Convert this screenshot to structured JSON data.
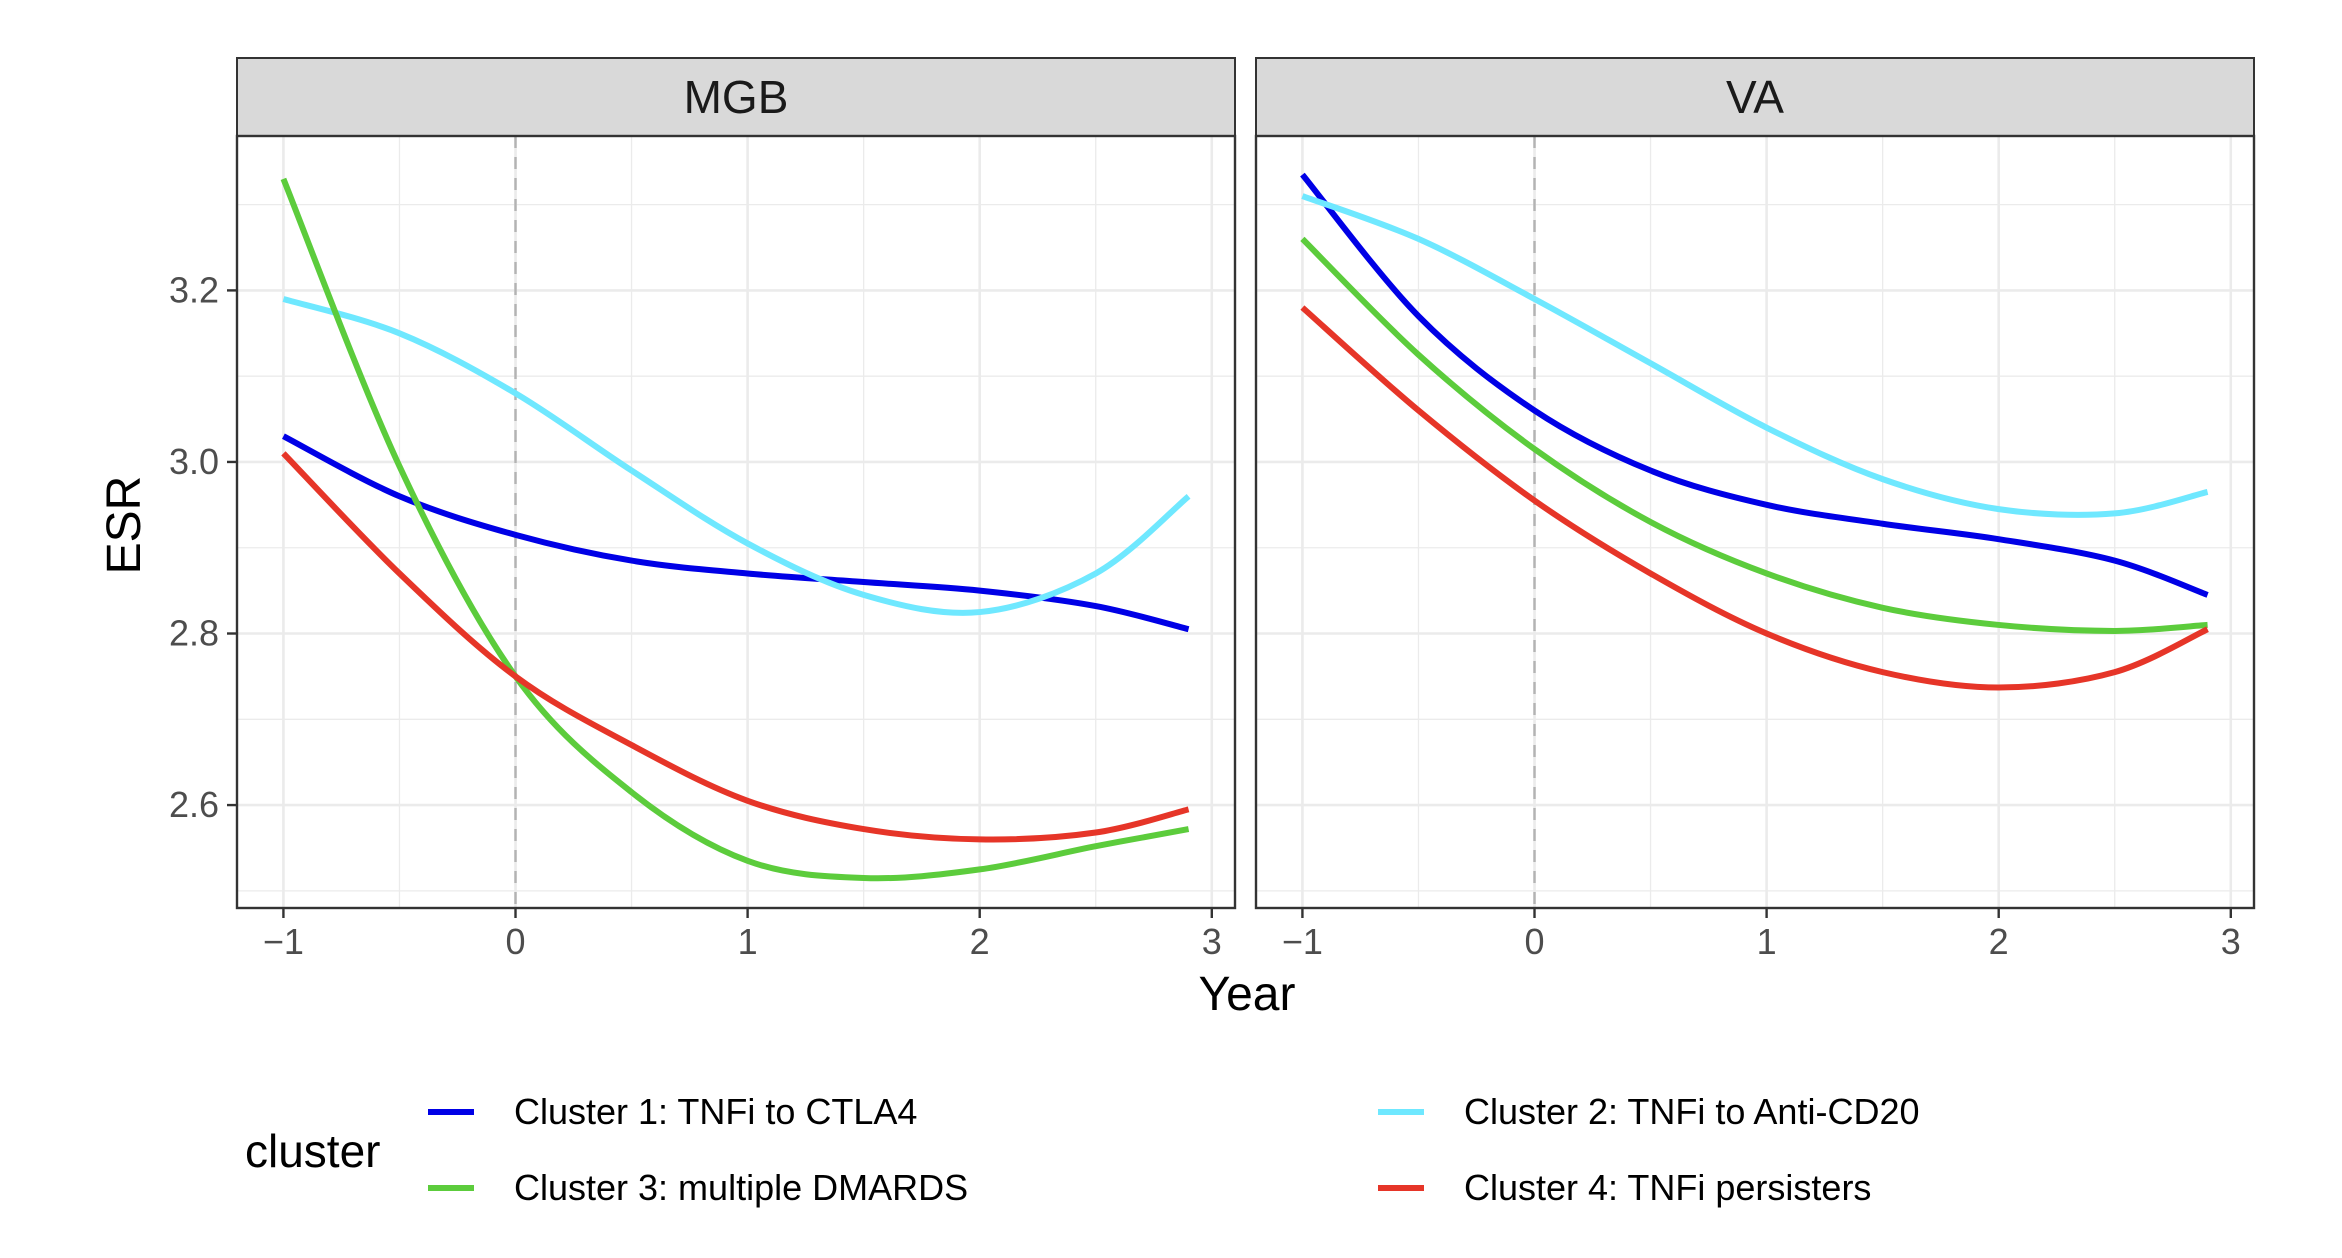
{
  "chart_data": {
    "type": "line",
    "facet_var": "site",
    "facets": [
      {
        "name": "MGB",
        "series": [
          {
            "name": "Cluster 1: TNFi to CTLA4",
            "color": "#0000e6",
            "x": [
              -1,
              -0.5,
              0,
              0.5,
              1,
              1.5,
              2,
              2.5,
              2.9
            ],
            "y": [
              3.03,
              2.96,
              2.915,
              2.885,
              2.87,
              2.86,
              2.85,
              2.832,
              2.805
            ]
          },
          {
            "name": "Cluster 2: TNFi to Anti-CD20",
            "color": "#6fe8ff",
            "x": [
              -1,
              -0.5,
              0,
              0.5,
              1,
              1.5,
              2,
              2.5,
              2.9
            ],
            "y": [
              3.19,
              3.15,
              3.08,
              2.99,
              2.905,
              2.845,
              2.825,
              2.87,
              2.96
            ]
          },
          {
            "name": "Cluster 3: multiple DMARDS",
            "color": "#5ccc3c",
            "x": [
              -1,
              -0.5,
              0,
              0.5,
              1,
              1.5,
              2,
              2.5,
              2.9
            ],
            "y": [
              3.33,
              2.995,
              2.75,
              2.615,
              2.535,
              2.515,
              2.525,
              2.552,
              2.572
            ]
          },
          {
            "name": "Cluster 4: TNFi persisters",
            "color": "#e63528",
            "x": [
              -1,
              -0.5,
              0,
              0.5,
              1,
              1.5,
              2,
              2.5,
              2.9
            ],
            "y": [
              3.01,
              2.87,
              2.75,
              2.67,
              2.605,
              2.572,
              2.56,
              2.568,
              2.595
            ]
          }
        ]
      },
      {
        "name": "VA",
        "series": [
          {
            "name": "Cluster 1: TNFi to CTLA4",
            "color": "#0000e6",
            "x": [
              -1,
              -0.5,
              0,
              0.5,
              1,
              1.5,
              2,
              2.5,
              2.9
            ],
            "y": [
              3.335,
              3.17,
              3.06,
              2.99,
              2.95,
              2.928,
              2.91,
              2.885,
              2.845
            ]
          },
          {
            "name": "Cluster 2: TNFi to Anti-CD20",
            "color": "#6fe8ff",
            "x": [
              -1,
              -0.5,
              0,
              0.5,
              1,
              1.5,
              2,
              2.5,
              2.9
            ],
            "y": [
              3.31,
              3.26,
              3.19,
              3.115,
              3.04,
              2.98,
              2.945,
              2.94,
              2.965
            ]
          },
          {
            "name": "Cluster 3: multiple DMARDS",
            "color": "#5ccc3c",
            "x": [
              -1,
              -0.5,
              0,
              0.5,
              1,
              1.5,
              2,
              2.5,
              2.9
            ],
            "y": [
              3.26,
              3.125,
              3.015,
              2.93,
              2.87,
              2.83,
              2.81,
              2.803,
              2.81
            ]
          },
          {
            "name": "Cluster 4: TNFi persisters",
            "color": "#e63528",
            "x": [
              -1,
              -0.5,
              0,
              0.5,
              1,
              1.5,
              2,
              2.5,
              2.9
            ],
            "y": [
              3.18,
              3.06,
              2.955,
              2.87,
              2.8,
              2.755,
              2.737,
              2.755,
              2.805
            ]
          }
        ]
      }
    ],
    "xlabel": "Year",
    "ylabel": "ESR",
    "xlim": [
      -1.2,
      3.1
    ],
    "ylim": [
      2.48,
      3.38
    ],
    "xticks": [
      -1,
      0,
      1,
      2,
      3
    ],
    "xtick_labels": [
      "−1",
      "0",
      "1",
      "2",
      "3"
    ],
    "yticks": [
      2.6,
      2.8,
      3.0,
      3.2
    ],
    "ytick_labels": [
      "2.6",
      "2.8",
      "3.0",
      "3.2"
    ],
    "reference_vline_x": 0,
    "grid": true,
    "legend_title": "cluster",
    "legend_position": "bottom"
  }
}
